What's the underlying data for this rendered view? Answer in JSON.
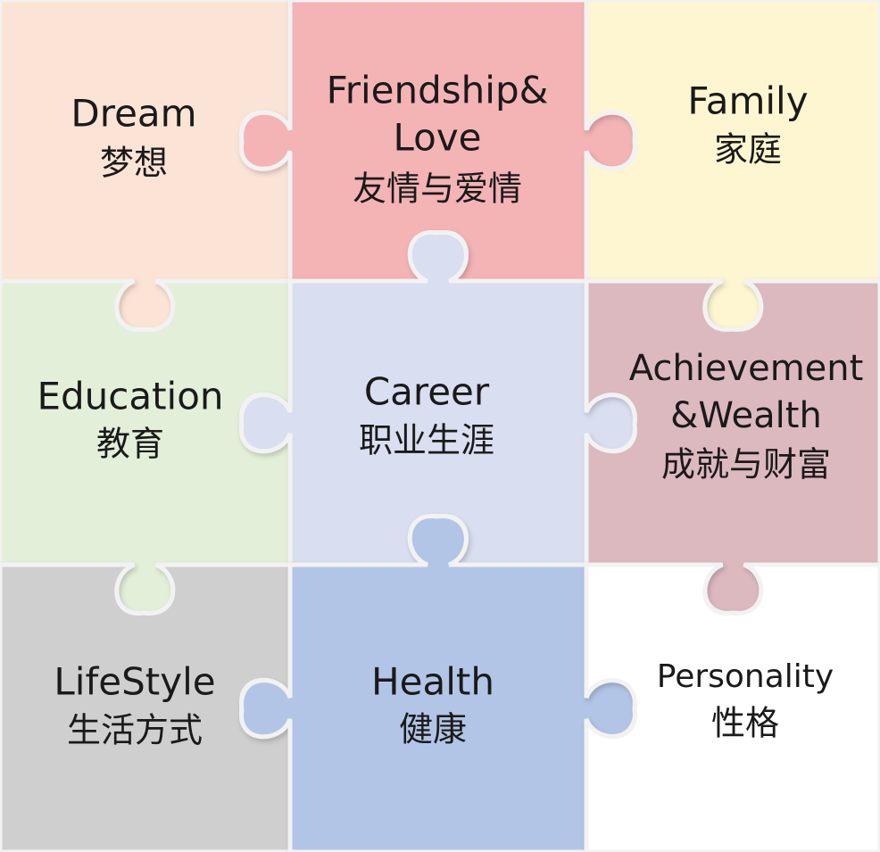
{
  "pieces": [
    {
      "id": "dream",
      "lines": [
        "Dream",
        "梦想"
      ],
      "color": "#fbe3d6"
    },
    {
      "id": "friendship-love",
      "lines": [
        "Friendship&",
        "Love",
        "友情与爱情"
      ],
      "color": "#f4b3b5"
    },
    {
      "id": "family",
      "lines": [
        "Family",
        "家庭"
      ],
      "color": "#fdf6d0"
    },
    {
      "id": "education",
      "lines": [
        "Education",
        "教育"
      ],
      "color": "#e3efd8"
    },
    {
      "id": "career",
      "lines": [
        "Career",
        "职业生涯"
      ],
      "color": "#d9def0"
    },
    {
      "id": "achievement-wealth",
      "lines": [
        "Achievement",
        "&Wealth",
        "成就与财富"
      ],
      "color": "#dcb8bf"
    },
    {
      "id": "lifestyle",
      "lines": [
        "LifeStyle",
        "生活方式"
      ],
      "color": "#cfcfcf"
    },
    {
      "id": "health",
      "lines": [
        "Health",
        "健康"
      ],
      "color": "#b2c5e6"
    },
    {
      "id": "personality",
      "lines": [
        "Personality",
        "性格"
      ],
      "color": "#ffffff"
    }
  ]
}
